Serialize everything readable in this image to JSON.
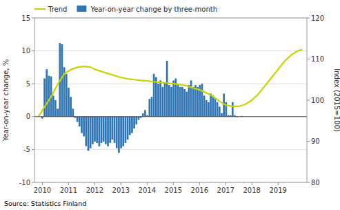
{
  "chart_data": {
    "type": "bar",
    "y_label": "Year-on-year change, %",
    "y2_label": "Index (2015=100)",
    "annotations": [
      "Source: Statistics Finland"
    ],
    "xlim": [
      2009.7,
      2020.1
    ],
    "xticks": [
      2010,
      2011,
      2012,
      2013,
      2014,
      2015,
      2016,
      2017,
      2018,
      2019
    ],
    "ylim": [
      -10,
      15
    ],
    "yticks": [
      -10,
      -5,
      0,
      5,
      10,
      15
    ],
    "y2lim": [
      80,
      120
    ],
    "y2ticks": [
      80,
      90,
      100,
      110,
      120
    ],
    "grid": true,
    "legend": "top-left",
    "series": [
      {
        "name": "Trend",
        "type": "line",
        "axis": "y2",
        "color": "#c8d400",
        "x": [
          2009.85,
          2010.1,
          2010.35,
          2010.6,
          2010.85,
          2011.1,
          2011.35,
          2011.6,
          2011.85,
          2012.0,
          2012.25,
          2012.5,
          2012.75,
          2013.0,
          2013.25,
          2013.5,
          2013.75,
          2014.0,
          2014.25,
          2014.5,
          2014.75,
          2015.0,
          2015.25,
          2015.5,
          2015.75,
          2016.0,
          2016.25,
          2016.5,
          2016.75,
          2017.0,
          2017.25,
          2017.5,
          2017.75,
          2018.0,
          2018.25,
          2018.5,
          2018.75,
          2019.0,
          2019.25,
          2019.5,
          2019.75,
          2019.92
        ],
        "values": [
          96.0,
          98.5,
          101.0,
          104.0,
          106.5,
          107.5,
          108.0,
          108.2,
          108.0,
          107.5,
          107.0,
          106.5,
          106.0,
          105.5,
          105.2,
          105.0,
          104.8,
          104.7,
          104.5,
          104.3,
          104.2,
          104.0,
          103.8,
          103.5,
          103.0,
          102.5,
          101.8,
          101.0,
          99.8,
          98.8,
          98.5,
          98.5,
          99.0,
          100.0,
          101.5,
          103.5,
          105.5,
          107.5,
          109.5,
          111.0,
          112.0,
          112.3
        ]
      },
      {
        "name": "Year-on-year change by three-month",
        "type": "bar",
        "color": "#2e75b6",
        "x": [
          2010,
          2010.0835,
          2010.167,
          2010.2505,
          2010.334,
          2010.4175,
          2010.501,
          2010.5845,
          2010.668,
          2010.7515,
          2010.835,
          2010.9185,
          2011.002,
          2011.0855,
          2011.169,
          2011.2525,
          2011.336,
          2011.4195,
          2011.503,
          2011.5865,
          2011.67,
          2011.7535,
          2011.837,
          2011.9205,
          2012.004,
          2012.0875,
          2012.171,
          2012.2545,
          2012.338,
          2012.4215,
          2012.505,
          2012.5885,
          2012.672,
          2012.7555,
          2012.839,
          2012.9225,
          2013.006,
          2013.0895,
          2013.173,
          2013.2565,
          2013.34,
          2013.4235,
          2013.507,
          2013.5905,
          2013.674,
          2013.7575,
          2013.841,
          2013.9245,
          2014.008,
          2014.0915,
          2014.175,
          2014.2585,
          2014.342,
          2014.4255,
          2014.509,
          2014.5925,
          2014.676,
          2014.7595,
          2014.843,
          2014.9265,
          2015.01,
          2015.0935,
          2015.177,
          2015.2605,
          2015.344,
          2015.4275,
          2015.511,
          2015.5945,
          2015.678,
          2015.7615,
          2015.845,
          2015.9285,
          2016.012,
          2016.0955,
          2016.179,
          2016.2625,
          2016.346,
          2016.4295,
          2016.513,
          2016.5965,
          2016.68,
          2016.7635,
          2016.847,
          2016.9305,
          2017.014,
          2017.0975,
          2017.181,
          2017.2645,
          2017.348,
          2017.4315,
          2017.515,
          2017.5985,
          2017.682
        ],
        "values": [
          -0.3,
          5.8,
          7.2,
          6.2,
          6.1,
          3.2,
          2.5,
          1.2,
          11.2,
          11.0,
          7.5,
          6.5,
          4.4,
          3.0,
          1.2,
          -0.2,
          -0.8,
          -1.5,
          -2.5,
          -3.0,
          -4.5,
          -5.2,
          -4.8,
          -4.2,
          -3.8,
          -4.0,
          -4.5,
          -4.0,
          -3.8,
          -4.2,
          -4.5,
          -4.0,
          -3.5,
          -4.0,
          -4.8,
          -5.5,
          -4.8,
          -4.5,
          -4.0,
          -3.5,
          -2.8,
          -2.5,
          -1.8,
          -1.2,
          -0.5,
          -0.2,
          0.5,
          1.0,
          0.2,
          2.7,
          3.0,
          6.5,
          6.0,
          5.0,
          5.5,
          4.5,
          5.2,
          8.5,
          4.8,
          4.5,
          5.5,
          5.8,
          4.8,
          4.5,
          4.5,
          4.2,
          3.8,
          4.8,
          5.5,
          4.5,
          4.8,
          4.5,
          4.8,
          5.0,
          3.2,
          2.5,
          2.2,
          3.5,
          3.2,
          2.8,
          2.2,
          1.5,
          0.5,
          3.5,
          2.2,
          0.2,
          0.2,
          2.2,
          0.2,
          -0.1,
          0.0,
          0.1,
          0.0
        ]
      }
    ]
  }
}
